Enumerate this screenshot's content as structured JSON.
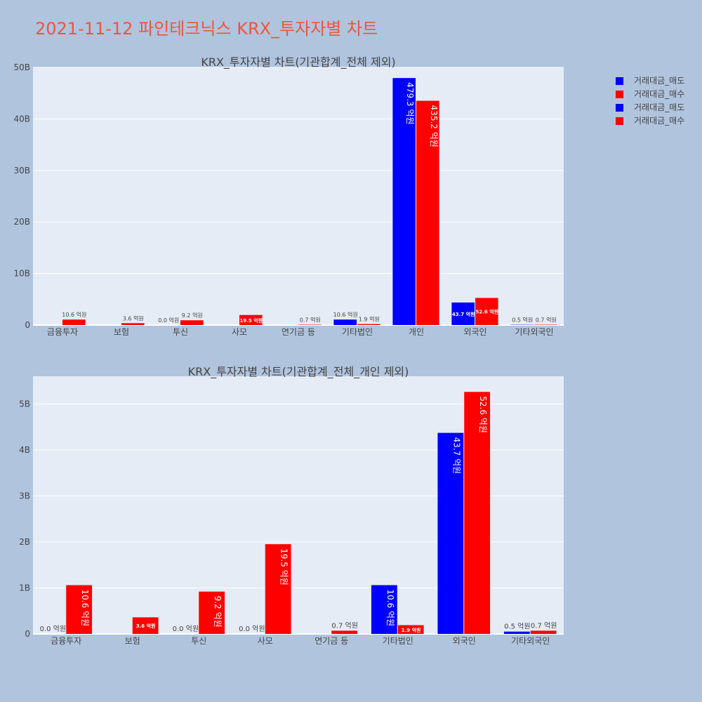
{
  "title": "2021-11-12 파인테크닉스 KRX_투자자별 차트",
  "colors": {
    "sell": "#0000ff",
    "buy": "#ff0000",
    "background": "#b0c4de",
    "plot_bg": "#e5ecf6",
    "title": "#ef553b"
  },
  "legend": [
    {
      "name": "거래대금_매도",
      "color": "#0000ff"
    },
    {
      "name": "거래대금_매수",
      "color": "#ff0000"
    },
    {
      "name": "거래대금_매도",
      "color": "#0000ff"
    },
    {
      "name": "거래대금_매수",
      "color": "#ff0000"
    }
  ],
  "chart_data": [
    {
      "type": "bar",
      "title": "KRX_투자자별 차트(기관합계_전체 제외)",
      "categories": [
        "금융투자",
        "보험",
        "투신",
        "사모",
        "연기금 등",
        "기타법인",
        "개인",
        "외국인",
        "기타외국인"
      ],
      "ylim": [
        0,
        50
      ],
      "yticks": [
        0,
        10,
        20,
        30,
        40,
        50
      ],
      "ytick_labels": [
        "0",
        "10B",
        "20B",
        "30B",
        "40B",
        "50B"
      ],
      "unit": "B",
      "series": [
        {
          "name": "거래대금_매도",
          "color": "#0000ff",
          "values": [
            0,
            0,
            0,
            0,
            0,
            1.06,
            47.93,
            4.37,
            0.05
          ],
          "labels": [
            "",
            "",
            "0.0 억원",
            "",
            "",
            "10.6 억원",
            "479.3 억원",
            "43.7 억원",
            "0.5 억원"
          ]
        },
        {
          "name": "거래대금_매수",
          "color": "#ff0000",
          "values": [
            1.06,
            0.36,
            0.92,
            1.95,
            0.07,
            0.19,
            43.52,
            5.26,
            0.07
          ],
          "labels": [
            "10.6 억원",
            "3.6 억원",
            "9.2 억원",
            "19.5 억원",
            "0.7 억원",
            "1.9 억원",
            "435.2 억원",
            "52.6 억원",
            "0.7 억원"
          ]
        }
      ]
    },
    {
      "type": "bar",
      "title": "KRX_투자자별 차트(기관합계_전체_개인 제외)",
      "categories": [
        "금융투자",
        "보험",
        "투신",
        "사모",
        "연기금 등",
        "기타법인",
        "외국인",
        "기타외국인"
      ],
      "ylim": [
        0,
        5.6
      ],
      "yticks": [
        0,
        1,
        2,
        3,
        4,
        5
      ],
      "ytick_labels": [
        "0",
        "1B",
        "2B",
        "3B",
        "4B",
        "5B"
      ],
      "unit": "B",
      "series": [
        {
          "name": "거래대금_매도",
          "color": "#0000ff",
          "values": [
            0,
            0,
            0,
            0,
            0,
            1.06,
            4.37,
            0.05
          ],
          "labels": [
            "0.0 억원",
            "",
            "0.0 억원",
            "0.0 억원",
            "",
            "10.6 억원",
            "43.7 억원",
            "0.5 억원"
          ]
        },
        {
          "name": "거래대금_매수",
          "color": "#ff0000",
          "values": [
            1.06,
            0.36,
            0.92,
            1.95,
            0.07,
            0.19,
            5.26,
            0.07
          ],
          "labels": [
            "10.6 억원",
            "3.6 억원",
            "9.2 억원",
            "19.5 억원",
            "0.7 억원",
            "1.9 억원",
            "52.6 억원",
            "0.7 억원"
          ]
        }
      ]
    }
  ]
}
